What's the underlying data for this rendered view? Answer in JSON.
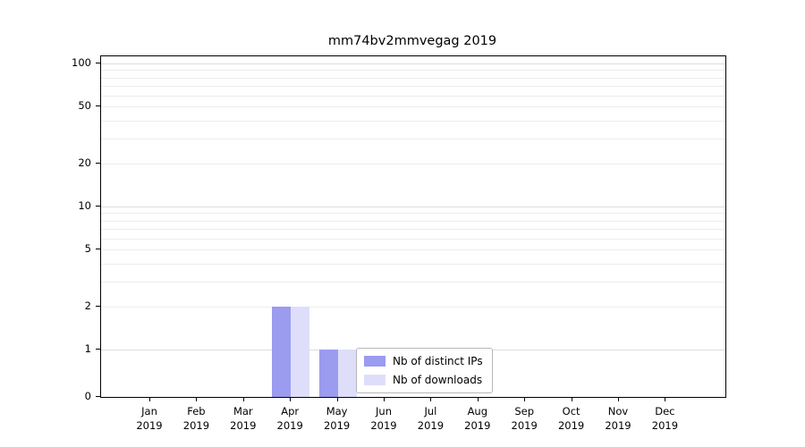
{
  "chart_data": {
    "type": "bar",
    "title": "mm74bv2mmvegag 2019",
    "scale": "symlog",
    "year": "2019",
    "categories": [
      "Jan",
      "Feb",
      "Mar",
      "Apr",
      "May",
      "Jun",
      "Jul",
      "Aug",
      "Sep",
      "Oct",
      "Nov",
      "Dec"
    ],
    "series": [
      {
        "name": "Nb of distinct IPs",
        "color": "#9b9bf0",
        "values": [
          0,
          0,
          0,
          2,
          1,
          0,
          0,
          0,
          0,
          0,
          0,
          0
        ]
      },
      {
        "name": "Nb of downloads",
        "color": "#dedefb",
        "values": [
          0,
          0,
          0,
          2,
          1,
          0,
          0,
          0,
          0,
          0,
          0,
          0
        ]
      }
    ],
    "yticks": [
      0,
      1,
      2,
      5,
      10,
      20,
      50,
      100
    ],
    "ylim": [
      0,
      100
    ],
    "grid": "on",
    "legend_position": "lower-center"
  }
}
